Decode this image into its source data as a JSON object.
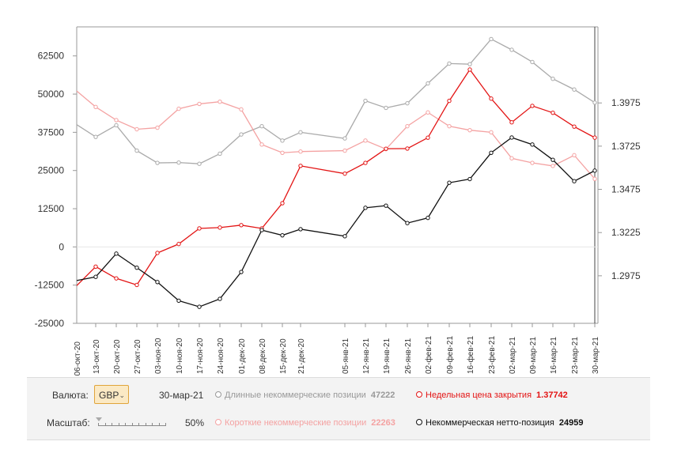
{
  "chart_data": {
    "type": "line",
    "left_axis": {
      "ylim": [
        -25000,
        72000
      ],
      "ticks": [
        62500,
        50000,
        37500,
        25000,
        12500,
        0,
        -12500,
        -25000
      ],
      "tick_labels": [
        "62500",
        "50000",
        "37500",
        "25000",
        "12500",
        "0",
        "-12500",
        "-25000"
      ]
    },
    "right_axis": {
      "ylim": [
        1.27,
        1.4415
      ],
      "ticks": [
        1.3975,
        1.3725,
        1.3475,
        1.3225,
        1.2975
      ],
      "tick_labels": [
        "1.3975",
        "1.3725",
        "1.3475",
        "1.3225",
        "1.2975"
      ]
    },
    "date_labels": [
      "13-окт-20",
      "20-окт-20",
      "27-окт-20",
      "03-ноя-20",
      "10-ноя-20",
      "17-ноя-20",
      "24-ноя-20",
      "01-дек-20",
      "08-дек-20",
      "15-дек-20",
      "21-дек-20",
      "05-янв-21",
      "12-янв-21",
      "19-янв-21",
      "26-янв-21",
      "02-фев-21",
      "09-фев-21",
      "16-фев-21",
      "23-фев-21",
      "02-мар-21",
      "09-мар-21",
      "16-мар-21",
      "23-мар-21",
      "30-мар-21"
    ],
    "first_label_partial": "06-окт-20",
    "grid": false,
    "series": [
      {
        "name": "Длинные некоммерческие позиции",
        "axis": "left",
        "color": "#aaaaaa",
        "values": [
          40000,
          36000,
          39800,
          31500,
          27500,
          27600,
          27200,
          30500,
          36800,
          39500,
          34800,
          37500,
          35500,
          47800,
          45500,
          47000,
          53500,
          60000,
          59800,
          68000,
          64500,
          60500,
          55000,
          51500,
          47222
        ]
      },
      {
        "name": "Короткие некоммерческие позиции",
        "axis": "left",
        "color": "#f4a2a2",
        "values": [
          51000,
          45800,
          41500,
          38500,
          39000,
          45200,
          46800,
          47500,
          45000,
          33500,
          30800,
          31200,
          31500,
          34800,
          32000,
          39500,
          44000,
          39500,
          38200,
          37500,
          29000,
          27500,
          26500,
          30000,
          22263
        ]
      },
      {
        "name": "Недельная цена закрытия",
        "axis": "right",
        "color": "#e31414",
        "values": [
          1.2918,
          1.3028,
          1.296,
          1.2922,
          1.3107,
          1.3159,
          1.3249,
          1.3254,
          1.3268,
          1.3249,
          1.3395,
          1.3611,
          1.3566,
          1.3628,
          1.371,
          1.3711,
          1.3774,
          1.3987,
          1.4168,
          1.4,
          1.3863,
          1.3958,
          1.3918,
          1.3838,
          1.37742
        ]
      },
      {
        "name": "Некоммерческая нетто-позиция",
        "axis": "left",
        "color": "#111111",
        "values": [
          -11000,
          -9800,
          -2200,
          -6800,
          -11500,
          -17600,
          -19600,
          -17000,
          -8200,
          5500,
          3800,
          5800,
          3500,
          12800,
          13500,
          7800,
          9500,
          21000,
          22200,
          30800,
          35800,
          33500,
          28500,
          21500,
          24959
        ]
      }
    ]
  },
  "controls": {
    "currency_label": "Валюта:",
    "currency_value": "GBP",
    "date": "30-мар-21",
    "scale_label": "Масштаб:",
    "scale_value": "50%",
    "legend": {
      "long": {
        "label": "Длинные некоммерческие позиции",
        "value": "47222",
        "color": "#aaaaaa"
      },
      "short": {
        "label": "Короткие некоммерческие позиции",
        "value": "22263",
        "color": "#f4a2a2"
      },
      "close": {
        "label": "Недельная цена закрытия",
        "value": "1.37742",
        "color": "#e31414"
      },
      "net": {
        "label": "Некоммерческая нетто-позиция",
        "value": "24959",
        "color": "#111111"
      }
    }
  }
}
